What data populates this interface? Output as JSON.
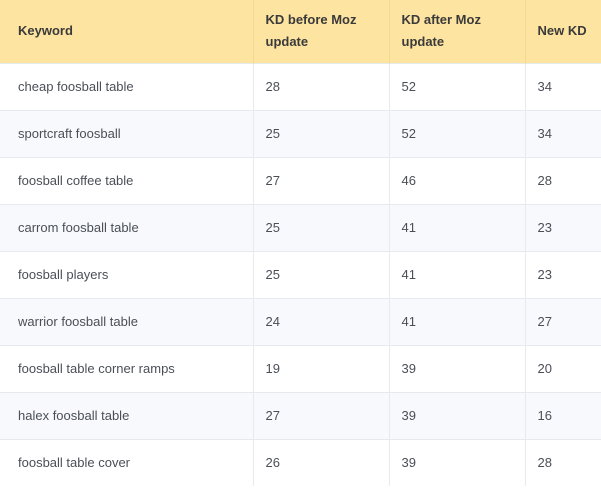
{
  "table": {
    "headers": [
      "Keyword",
      "KD before Moz update",
      "KD after Moz update",
      "New KD"
    ],
    "rows": [
      [
        "cheap foosball table",
        "28",
        "52",
        "34"
      ],
      [
        "sportcraft foosball",
        "25",
        "52",
        "34"
      ],
      [
        "foosball coffee table",
        "27",
        "46",
        "28"
      ],
      [
        "carrom foosball table",
        "25",
        "41",
        "23"
      ],
      [
        "foosball players",
        "25",
        "41",
        "23"
      ],
      [
        "warrior foosball table",
        "24",
        "41",
        "27"
      ],
      [
        "foosball table corner ramps",
        "19",
        "39",
        "20"
      ],
      [
        "halex foosball table",
        "27",
        "39",
        "16"
      ],
      [
        "foosball table cover",
        "26",
        "39",
        "28"
      ]
    ]
  },
  "colors": {
    "header_bg": "#fde4a1",
    "row_alt_bg": "#f8f9fc",
    "border": "#e6e9ee"
  }
}
